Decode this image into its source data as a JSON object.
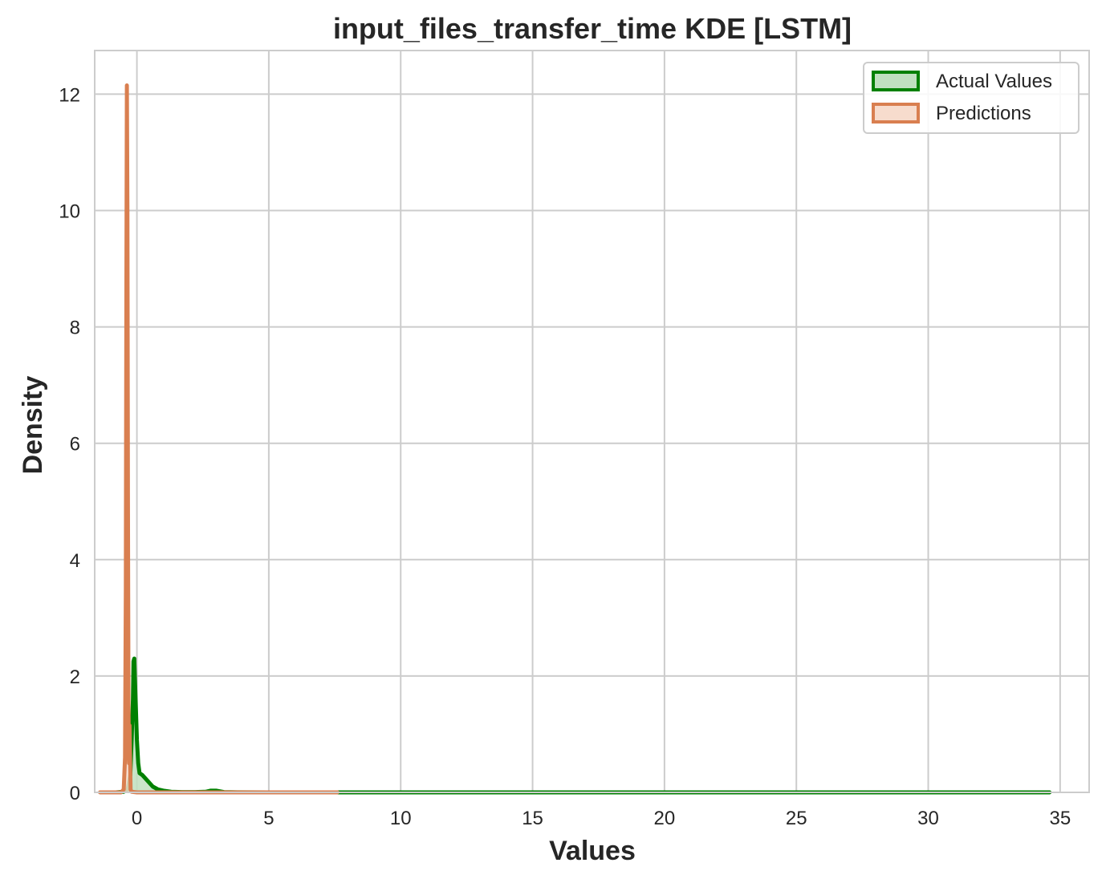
{
  "chart_data": {
    "type": "area",
    "title": "input_files_transfer_time KDE [LSTM]",
    "xlabel": "Values",
    "ylabel": "Density",
    "xlim": [
      -1.6,
      36.1
    ],
    "ylim": [
      0,
      12.75
    ],
    "xticks": [
      0,
      5,
      10,
      15,
      20,
      25,
      30,
      35
    ],
    "yticks": [
      0,
      2,
      4,
      6,
      8,
      10,
      12
    ],
    "grid": true,
    "legend_position": "top-right",
    "series": [
      {
        "name": "Actual Values",
        "color": "#008000",
        "fill_color": "#bfe0bf",
        "x": [
          -1.3,
          -0.8,
          -0.5,
          -0.35,
          -0.25,
          -0.2,
          -0.15,
          -0.13,
          -0.1,
          -0.05,
          0.0,
          0.05,
          0.1,
          0.2,
          0.4,
          0.6,
          0.8,
          1.0,
          1.3,
          1.7,
          2.2,
          2.6,
          2.8,
          3.0,
          3.3,
          3.8,
          5.0,
          10.0,
          15.0,
          20.0,
          25.0,
          30.0,
          34.6
        ],
        "y": [
          0,
          0,
          0.01,
          0.05,
          0.3,
          0.9,
          1.6,
          2.25,
          2.3,
          1.6,
          0.9,
          0.5,
          0.33,
          0.3,
          0.2,
          0.1,
          0.05,
          0.03,
          0.01,
          0.005,
          0.005,
          0.01,
          0.03,
          0.03,
          0.005,
          0.002,
          0,
          0,
          0,
          0,
          0,
          0,
          0
        ]
      },
      {
        "name": "Predictions",
        "color": "#d97f50",
        "fill_color": "#f7dccd",
        "x": [
          -1.4,
          -0.9,
          -0.6,
          -0.5,
          -0.45,
          -0.42,
          -0.4,
          -0.38,
          -0.36,
          -0.34,
          -0.32,
          -0.3,
          -0.28,
          -0.26,
          -0.24,
          -0.2,
          0.0,
          1.0,
          3.0,
          5.0,
          7.6
        ],
        "y": [
          0,
          0,
          0,
          0.05,
          0.6,
          3.5,
          8.5,
          12.15,
          10.0,
          5.0,
          1.5,
          0.5,
          1.15,
          0.6,
          0.05,
          0.01,
          0,
          0,
          0,
          0,
          0
        ]
      }
    ]
  }
}
